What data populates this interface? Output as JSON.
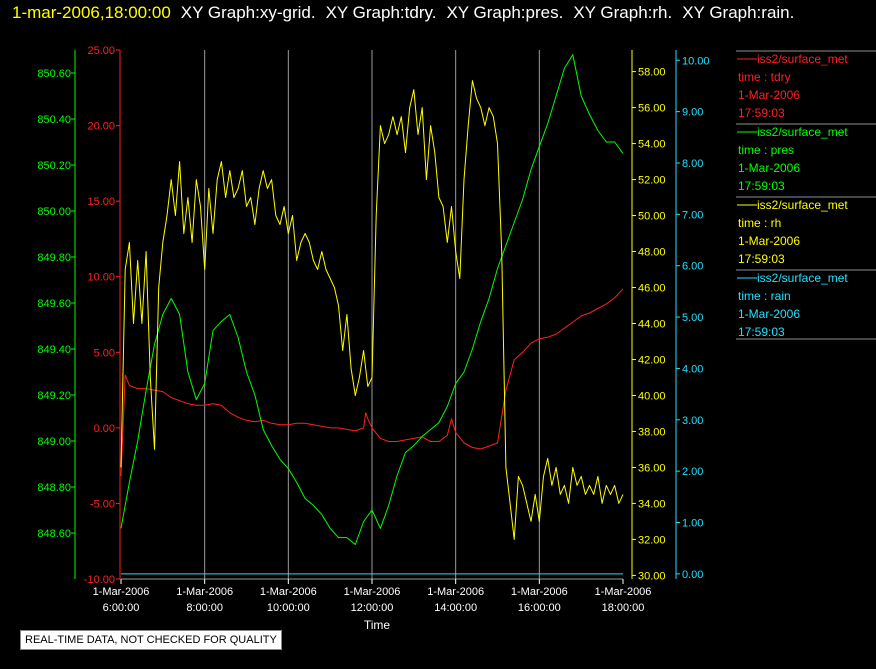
{
  "header": {
    "timestamp": "1-mar-2006,18:00:00",
    "graph_titles": [
      "XY Graph:xy-grid.",
      "XY Graph:tdry.",
      "XY Graph:pres.",
      "XY Graph:rh.",
      "XY Graph:rain."
    ]
  },
  "notice": "REAL-TIME DATA, NOT CHECKED FOR QUALITY",
  "colors": {
    "tdry": "#ff2020",
    "pres": "#00ff00",
    "rh": "#ffff00",
    "rain": "#20e0ff",
    "grid": "#9a9a9a"
  },
  "legend": [
    {
      "source": "iss2/surface_met",
      "field": "time : tdry",
      "date": "1-Mar-2006",
      "time": "17:59:03",
      "color": "#ff2020"
    },
    {
      "source": "iss2/surface_met",
      "field": "time : pres",
      "date": "1-Mar-2006",
      "time": "17:59:03",
      "color": "#00ff00"
    },
    {
      "source": "iss2/surface_met",
      "field": "time : rh",
      "date": "1-Mar-2006",
      "time": "17:59:03",
      "color": "#ffff00"
    },
    {
      "source": "iss2/surface_met",
      "field": "time : rain",
      "date": "1-Mar-2006",
      "time": "17:59:03",
      "color": "#20e0ff"
    }
  ],
  "chart_data": {
    "type": "line",
    "xlabel": "Time",
    "xlim": [
      6.0,
      18.0
    ],
    "x_ticks": [
      {
        "date": "1-Mar-2006",
        "time": "6:00:00",
        "value": 6
      },
      {
        "date": "1-Mar-2006",
        "time": "8:00:00",
        "value": 8
      },
      {
        "date": "1-Mar-2006",
        "time": "10:00:00",
        "value": 10
      },
      {
        "date": "1-Mar-2006",
        "time": "12:00:00",
        "value": 12
      },
      {
        "date": "1-Mar-2006",
        "time": "14:00:00",
        "value": 14
      },
      {
        "date": "1-Mar-2006",
        "time": "16:00:00",
        "value": 16
      },
      {
        "date": "1-Mar-2006",
        "time": "18:00:00",
        "value": 18
      }
    ],
    "grid": "vertical",
    "axes": {
      "pres": {
        "ylim": [
          848.4,
          850.7
        ],
        "ticks": [
          "848.60",
          "848.80",
          "849.00",
          "849.20",
          "849.40",
          "849.60",
          "849.80",
          "850.00",
          "850.20",
          "850.40",
          "850.60"
        ]
      },
      "tdry": {
        "ylim": [
          -10,
          25
        ],
        "ticks": [
          "-10.00",
          "-5.00",
          "0.00",
          "5.00",
          "10.00",
          "15.00",
          "20.00",
          "25.00"
        ]
      },
      "rh": {
        "ylim": [
          29.8,
          59.2
        ],
        "ticks": [
          "30.00",
          "32.00",
          "34.00",
          "36.00",
          "38.00",
          "40.00",
          "42.00",
          "44.00",
          "46.00",
          "48.00",
          "50.00",
          "52.00",
          "54.00",
          "56.00",
          "58.00"
        ]
      },
      "rain": {
        "ylim": [
          -0.1,
          10.2
        ],
        "ticks": [
          "0.00",
          "1.00",
          "2.00",
          "3.00",
          "4.00",
          "5.00",
          "6.00",
          "7.00",
          "8.00",
          "9.00",
          "10.00"
        ]
      }
    },
    "series": [
      {
        "key": "tdry",
        "axis": "tdry",
        "x": [
          6.0,
          6.1,
          6.2,
          6.4,
          6.6,
          6.8,
          7.0,
          7.2,
          7.4,
          7.6,
          7.8,
          8.0,
          8.2,
          8.4,
          8.6,
          8.8,
          9.0,
          9.2,
          9.4,
          9.6,
          9.8,
          10.0,
          10.2,
          10.4,
          10.6,
          10.8,
          11.0,
          11.2,
          11.4,
          11.6,
          11.8,
          11.85,
          11.9,
          12.0,
          12.2,
          12.4,
          12.6,
          12.8,
          13.0,
          13.2,
          13.4,
          13.6,
          13.8,
          13.9,
          14.0,
          14.2,
          14.4,
          14.6,
          14.8,
          15.0,
          15.2,
          15.4,
          15.6,
          15.8,
          16.0,
          16.2,
          16.4,
          16.6,
          16.8,
          17.0,
          17.2,
          17.4,
          17.6,
          17.8,
          18.0
        ],
        "y": [
          -3.2,
          3.5,
          2.8,
          2.6,
          2.6,
          2.5,
          2.4,
          2.0,
          1.8,
          1.6,
          1.5,
          1.5,
          1.6,
          1.5,
          1.0,
          0.7,
          0.5,
          0.4,
          0.5,
          0.3,
          0.2,
          0.2,
          0.3,
          0.3,
          0.2,
          0.1,
          0.0,
          0.0,
          -0.1,
          -0.2,
          0.0,
          1.0,
          0.6,
          0.0,
          -0.7,
          -0.9,
          -0.9,
          -0.8,
          -0.7,
          -0.6,
          -0.9,
          -0.9,
          -0.5,
          0.6,
          -0.3,
          -1.0,
          -1.3,
          -1.4,
          -1.2,
          -1.0,
          2.5,
          4.5,
          5.0,
          5.6,
          5.9,
          6.0,
          6.2,
          6.6,
          7.0,
          7.4,
          7.6,
          7.9,
          8.2,
          8.6,
          9.2
        ]
      },
      {
        "key": "pres",
        "axis": "pres",
        "x": [
          6.0,
          6.2,
          6.4,
          6.6,
          6.8,
          7.0,
          7.2,
          7.4,
          7.6,
          7.8,
          8.0,
          8.2,
          8.4,
          8.6,
          8.8,
          9.0,
          9.2,
          9.4,
          9.6,
          9.8,
          10.0,
          10.2,
          10.4,
          10.6,
          10.8,
          11.0,
          11.2,
          11.4,
          11.6,
          11.8,
          12.0,
          12.2,
          12.4,
          12.6,
          12.8,
          13.0,
          13.2,
          13.4,
          13.6,
          13.8,
          14.0,
          14.2,
          14.4,
          14.6,
          14.8,
          15.0,
          15.2,
          15.4,
          15.6,
          15.8,
          16.0,
          16.2,
          16.4,
          16.6,
          16.8,
          17.0,
          17.2,
          17.4,
          17.6,
          17.8,
          18.0
        ],
        "y": [
          848.62,
          848.82,
          849.0,
          849.22,
          849.42,
          849.55,
          849.62,
          849.55,
          849.3,
          849.18,
          849.25,
          849.48,
          849.52,
          849.55,
          849.45,
          849.3,
          849.2,
          849.05,
          848.98,
          848.92,
          848.88,
          848.82,
          848.75,
          848.72,
          848.68,
          848.62,
          848.58,
          848.58,
          848.55,
          848.65,
          848.7,
          848.62,
          848.72,
          848.85,
          848.95,
          848.98,
          849.02,
          849.05,
          849.08,
          849.15,
          849.25,
          849.3,
          849.4,
          849.52,
          849.62,
          849.75,
          849.85,
          849.95,
          850.05,
          850.18,
          850.28,
          850.38,
          850.5,
          850.62,
          850.68,
          850.5,
          850.42,
          850.35,
          850.3,
          850.3,
          850.25
        ]
      },
      {
        "key": "rh",
        "axis": "rh",
        "x": [
          6.0,
          6.1,
          6.2,
          6.3,
          6.4,
          6.5,
          6.6,
          6.7,
          6.8,
          6.9,
          7.0,
          7.1,
          7.2,
          7.3,
          7.4,
          7.5,
          7.6,
          7.7,
          7.8,
          7.9,
          8.0,
          8.1,
          8.2,
          8.3,
          8.4,
          8.5,
          8.6,
          8.7,
          8.8,
          8.9,
          9.0,
          9.1,
          9.2,
          9.3,
          9.4,
          9.5,
          9.6,
          9.7,
          9.8,
          9.9,
          10.0,
          10.1,
          10.2,
          10.3,
          10.4,
          10.5,
          10.6,
          10.7,
          10.8,
          10.9,
          11.0,
          11.1,
          11.2,
          11.3,
          11.4,
          11.5,
          11.6,
          11.7,
          11.8,
          11.9,
          12.0,
          12.1,
          12.2,
          12.3,
          12.4,
          12.5,
          12.6,
          12.7,
          12.8,
          12.9,
          13.0,
          13.1,
          13.2,
          13.3,
          13.4,
          13.5,
          13.6,
          13.7,
          13.8,
          13.9,
          14.0,
          14.1,
          14.2,
          14.3,
          14.4,
          14.5,
          14.6,
          14.7,
          14.8,
          14.9,
          15.0,
          15.1,
          15.2,
          15.3,
          15.4,
          15.5,
          15.6,
          15.7,
          15.8,
          15.9,
          16.0,
          16.1,
          16.2,
          16.3,
          16.4,
          16.5,
          16.6,
          16.7,
          16.8,
          16.9,
          17.0,
          17.1,
          17.2,
          17.3,
          17.4,
          17.5,
          17.6,
          17.7,
          17.8,
          17.9,
          18.0
        ],
        "y": [
          36.0,
          47.0,
          48.5,
          44.0,
          47.5,
          44.0,
          48.0,
          41.0,
          37.0,
          46.0,
          48.5,
          50.0,
          52.0,
          50.0,
          53.0,
          49.0,
          51.0,
          48.5,
          52.0,
          50.5,
          47.0,
          51.5,
          49.0,
          52.0,
          53.0,
          51.0,
          52.5,
          51.0,
          51.5,
          52.5,
          50.5,
          51.0,
          49.5,
          51.5,
          52.5,
          51.5,
          52.0,
          50.0,
          49.5,
          50.5,
          49.0,
          50.0,
          47.5,
          48.5,
          49.0,
          48.5,
          47.5,
          47.0,
          48.0,
          47.0,
          46.5,
          46.0,
          45.0,
          42.5,
          44.5,
          41.5,
          40.0,
          41.0,
          42.5,
          40.5,
          41.0,
          50.0,
          55.0,
          54.0,
          54.5,
          55.5,
          54.5,
          55.5,
          53.5,
          56.0,
          57.0,
          54.5,
          56.0,
          52.0,
          55.0,
          53.5,
          51.0,
          50.5,
          48.5,
          50.5,
          48.0,
          46.5,
          52.0,
          55.0,
          57.5,
          56.5,
          56.0,
          55.0,
          56.0,
          55.5,
          54.0,
          48.0,
          36.0,
          34.0,
          32.0,
          35.5,
          35.0,
          34.0,
          33.0,
          34.5,
          33.0,
          35.5,
          36.5,
          35.0,
          36.0,
          34.5,
          35.0,
          34.0,
          36.0,
          35.0,
          35.5,
          34.5,
          35.0,
          34.5,
          35.5,
          34.0,
          35.0,
          34.5,
          35.0,
          34.0,
          34.5
        ]
      },
      {
        "key": "rain",
        "axis": "rain",
        "x": [
          6.0,
          18.0
        ],
        "y": [
          0.0,
          0.0
        ]
      }
    ]
  }
}
